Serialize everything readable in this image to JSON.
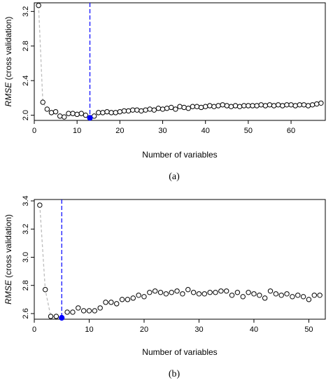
{
  "chart_data": [
    {
      "type": "scatter",
      "panel_label": "(a)",
      "xlabel": "Number of variables",
      "ylabel_italic": "RMSE",
      "ylabel_rest": " (cross validation)",
      "xlim": [
        0,
        68
      ],
      "ylim": [
        1.94,
        3.3
      ],
      "xticks": [
        0,
        10,
        20,
        30,
        40,
        50,
        60
      ],
      "yticks": [
        2.0,
        2.4,
        2.8,
        3.2
      ],
      "ytick_labels": [
        "2.0",
        "2.4",
        "2.8",
        "3.2"
      ],
      "x": [
        1,
        2,
        3,
        4,
        5,
        6,
        7,
        8,
        9,
        10,
        11,
        12,
        13,
        14,
        15,
        16,
        17,
        18,
        19,
        20,
        21,
        22,
        23,
        24,
        25,
        26,
        27,
        28,
        29,
        30,
        31,
        32,
        33,
        34,
        35,
        36,
        37,
        38,
        39,
        40,
        41,
        42,
        43,
        44,
        45,
        46,
        47,
        48,
        49,
        50,
        51,
        52,
        53,
        54,
        55,
        56,
        57,
        58,
        59,
        60,
        61,
        62,
        63,
        64,
        65,
        66,
        67
      ],
      "y": [
        3.27,
        2.15,
        2.07,
        2.03,
        2.04,
        1.99,
        1.98,
        2.02,
        2.02,
        2.01,
        2.02,
        2.0,
        1.97,
        1.99,
        2.03,
        2.03,
        2.04,
        2.03,
        2.03,
        2.04,
        2.05,
        2.05,
        2.06,
        2.06,
        2.05,
        2.06,
        2.07,
        2.06,
        2.08,
        2.07,
        2.08,
        2.09,
        2.07,
        2.1,
        2.09,
        2.08,
        2.1,
        2.1,
        2.09,
        2.1,
        2.11,
        2.1,
        2.11,
        2.12,
        2.11,
        2.1,
        2.11,
        2.1,
        2.11,
        2.11,
        2.11,
        2.11,
        2.12,
        2.11,
        2.12,
        2.11,
        2.12,
        2.11,
        2.12,
        2.12,
        2.11,
        2.12,
        2.12,
        2.11,
        2.12,
        2.13,
        2.14
      ],
      "dashed_line_points": 4,
      "optimum": {
        "x": 13,
        "y": 1.97
      },
      "optimum_color": "#0000ff",
      "vline_color": "#0000ff",
      "dash_color": "#bdbdbd"
    },
    {
      "type": "scatter",
      "panel_label": "(b)",
      "xlabel": "Number of variables",
      "ylabel_italic": "RMSE",
      "ylabel_rest": " (cross validation)",
      "xlim": [
        0,
        53
      ],
      "ylim": [
        2.56,
        3.41
      ],
      "xticks": [
        0,
        10,
        20,
        30,
        40,
        50
      ],
      "yticks": [
        2.6,
        2.8,
        3.0,
        3.2,
        3.4
      ],
      "ytick_labels": [
        "2.6",
        "2.8",
        "3.0",
        "3.2",
        "3.4"
      ],
      "x": [
        1,
        2,
        3,
        4,
        5,
        6,
        7,
        8,
        9,
        10,
        11,
        12,
        13,
        14,
        15,
        16,
        17,
        18,
        19,
        20,
        21,
        22,
        23,
        24,
        25,
        26,
        27,
        28,
        29,
        30,
        31,
        32,
        33,
        34,
        35,
        36,
        37,
        38,
        39,
        40,
        41,
        42,
        43,
        44,
        45,
        46,
        47,
        48,
        49,
        50,
        51,
        52
      ],
      "y": [
        3.37,
        2.77,
        2.58,
        2.58,
        2.57,
        2.61,
        2.61,
        2.64,
        2.62,
        2.62,
        2.62,
        2.64,
        2.68,
        2.68,
        2.67,
        2.7,
        2.7,
        2.71,
        2.73,
        2.72,
        2.75,
        2.76,
        2.75,
        2.74,
        2.75,
        2.76,
        2.74,
        2.77,
        2.75,
        2.74,
        2.74,
        2.75,
        2.75,
        2.76,
        2.76,
        2.73,
        2.75,
        2.72,
        2.75,
        2.74,
        2.73,
        2.71,
        2.76,
        2.74,
        2.73,
        2.74,
        2.72,
        2.73,
        2.72,
        2.7,
        2.73,
        2.73
      ],
      "dashed_line_points": 5,
      "optimum": {
        "x": 5,
        "y": 2.57
      },
      "optimum_color": "#0000ff",
      "vline_color": "#0000ff",
      "dash_color": "#bdbdbd"
    }
  ]
}
